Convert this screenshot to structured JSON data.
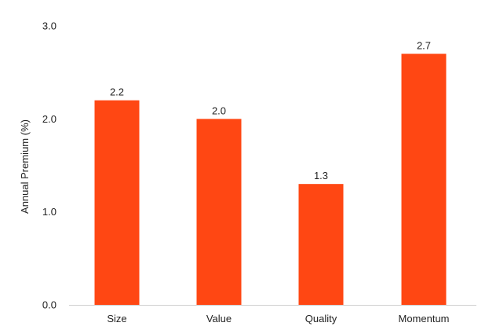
{
  "chart_data": {
    "type": "bar",
    "title": "",
    "xlabel": "",
    "ylabel": "Annual Premium (%)",
    "categories": [
      "Size",
      "Value",
      "Quality",
      "Momentum"
    ],
    "values": [
      2.2,
      2.0,
      1.3,
      2.7
    ],
    "value_labels": [
      "2.2",
      "2.0",
      "1.3",
      "2.7"
    ],
    "ylim": [
      0,
      3
    ],
    "yticks": [
      0,
      1,
      2,
      3
    ],
    "ytick_labels": [
      "0.0",
      "1.0",
      "2.0",
      "3.0"
    ],
    "grid": false,
    "legend": "none",
    "bar_color": "#ff4713"
  }
}
